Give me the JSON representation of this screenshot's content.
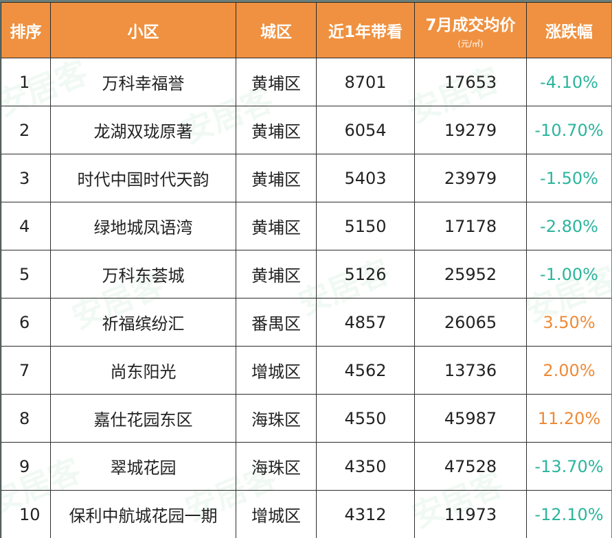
{
  "table": {
    "headers": {
      "rank": "排序",
      "community": "小区",
      "district": "城区",
      "viewings": "近1年带看",
      "price": "7月成交均价",
      "price_unit": "(元/㎡)",
      "change": "涨跌幅"
    },
    "rows": [
      {
        "rank": "1",
        "community": "万科幸福誉",
        "district": "黄埔区",
        "viewings": "8701",
        "price": "17653",
        "change": "-4.10%",
        "trend": "down"
      },
      {
        "rank": "2",
        "community": "龙湖双珑原著",
        "district": "黄埔区",
        "viewings": "6054",
        "price": "19279",
        "change": "-10.70%",
        "trend": "down"
      },
      {
        "rank": "3",
        "community": "时代中国时代天韵",
        "district": "黄埔区",
        "viewings": "5403",
        "price": "23979",
        "change": "-1.50%",
        "trend": "down"
      },
      {
        "rank": "4",
        "community": "绿地城凤语湾",
        "district": "黄埔区",
        "viewings": "5150",
        "price": "17178",
        "change": "-2.80%",
        "trend": "down"
      },
      {
        "rank": "5",
        "community": "万科东荟城",
        "district": "黄埔区",
        "viewings": "5126",
        "price": "25952",
        "change": "-1.00%",
        "trend": "down"
      },
      {
        "rank": "6",
        "community": "祈福缤纷汇",
        "district": "番禺区",
        "viewings": "4857",
        "price": "26065",
        "change": "3.50%",
        "trend": "up"
      },
      {
        "rank": "7",
        "community": "尚东阳光",
        "district": "增城区",
        "viewings": "4562",
        "price": "13736",
        "change": "2.00%",
        "trend": "up"
      },
      {
        "rank": "8",
        "community": "嘉仕花园东区",
        "district": "海珠区",
        "viewings": "4550",
        "price": "45987",
        "change": "11.20%",
        "trend": "up"
      },
      {
        "rank": "9",
        "community": "翠城花园",
        "district": "海珠区",
        "viewings": "4350",
        "price": "47528",
        "change": "-13.70%",
        "trend": "down"
      },
      {
        "rank": "10",
        "community": "保利中航城花园一期",
        "district": "增城区",
        "viewings": "4312",
        "price": "11973",
        "change": "-12.10%",
        "trend": "down"
      }
    ]
  },
  "watermark_text": "安居客",
  "colors": {
    "header_bg": "#ef9140",
    "up": "#ee8a37",
    "down": "#2bb59c"
  }
}
